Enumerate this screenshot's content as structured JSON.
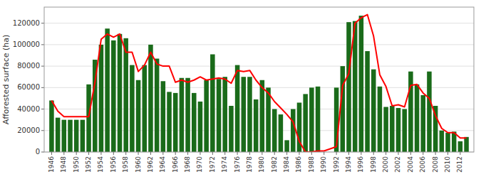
{
  "chart_data": {
    "type": "bar",
    "ylabel": "Afforested surface (ha)",
    "x": [
      1946,
      1947,
      1948,
      1949,
      1950,
      1951,
      1952,
      1953,
      1954,
      1955,
      1956,
      1957,
      1958,
      1959,
      1960,
      1961,
      1962,
      1963,
      1964,
      1965,
      1966,
      1967,
      1968,
      1969,
      1970,
      1971,
      1972,
      1973,
      1974,
      1975,
      1976,
      1977,
      1978,
      1979,
      1980,
      1981,
      1982,
      1983,
      1984,
      1985,
      1986,
      1987,
      1988,
      1989,
      1990,
      1991,
      1992,
      1993,
      1994,
      1995,
      1996,
      1997,
      1998,
      1999,
      2000,
      2001,
      2002,
      2003,
      2004,
      2005,
      2006,
      2007,
      2008,
      2009,
      2010,
      2011,
      2012,
      2013
    ],
    "series": [
      {
        "type": "bar",
        "color": "#1a6b1a",
        "values": [
          48000,
          32000,
          30000,
          30000,
          30000,
          30000,
          63000,
          86000,
          100000,
          115000,
          104000,
          110000,
          106000,
          81000,
          67000,
          81000,
          100000,
          87000,
          66000,
          56000,
          55000,
          69000,
          69000,
          55000,
          47000,
          67000,
          91000,
          68000,
          70000,
          43000,
          81000,
          70000,
          70000,
          49000,
          67000,
          60000,
          40000,
          35000,
          11000,
          40000,
          46000,
          54000,
          60000,
          61000,
          0,
          0,
          60000,
          80000,
          121000,
          122000,
          127000,
          94000,
          77000,
          61000,
          42000,
          43000,
          41000,
          40000,
          75000,
          63000,
          53000,
          75000,
          43000,
          20000,
          18000,
          19000,
          10000,
          14000
        ]
      },
      {
        "type": "line",
        "color": "#ff0000",
        "values": [
          48000,
          38000,
          33000,
          33000,
          33000,
          33000,
          33000,
          65000,
          105000,
          110000,
          107000,
          110000,
          93000,
          93000,
          75000,
          81000,
          93000,
          82000,
          80000,
          80000,
          65000,
          67000,
          65000,
          67000,
          70000,
          67000,
          68000,
          69000,
          68000,
          64000,
          76000,
          75000,
          76000,
          67000,
          60000,
          55000,
          47000,
          41000,
          35000,
          28000,
          10000,
          0,
          0,
          1000,
          1000,
          3000,
          5000,
          62000,
          73000,
          120000,
          125000,
          128000,
          108000,
          72000,
          61000,
          43000,
          44000,
          42000,
          62000,
          63000,
          55000,
          50000,
          34000,
          22000,
          18000,
          18000,
          13000,
          13000
        ]
      }
    ],
    "xlim": [
      1944.8,
      2014.2
    ],
    "xticks": [
      1946,
      1948,
      1950,
      1952,
      1954,
      1956,
      1958,
      1960,
      1962,
      1964,
      1966,
      1968,
      1970,
      1972,
      1974,
      1976,
      1978,
      1980,
      1982,
      1984,
      1986,
      1988,
      1990,
      1992,
      1994,
      1996,
      1998,
      2000,
      2002,
      2004,
      2006,
      2008,
      2010,
      2012
    ],
    "ylim": [
      0,
      135000
    ],
    "yticks": [
      0,
      20000,
      40000,
      60000,
      80000,
      100000,
      120000
    ],
    "grid": "y"
  }
}
